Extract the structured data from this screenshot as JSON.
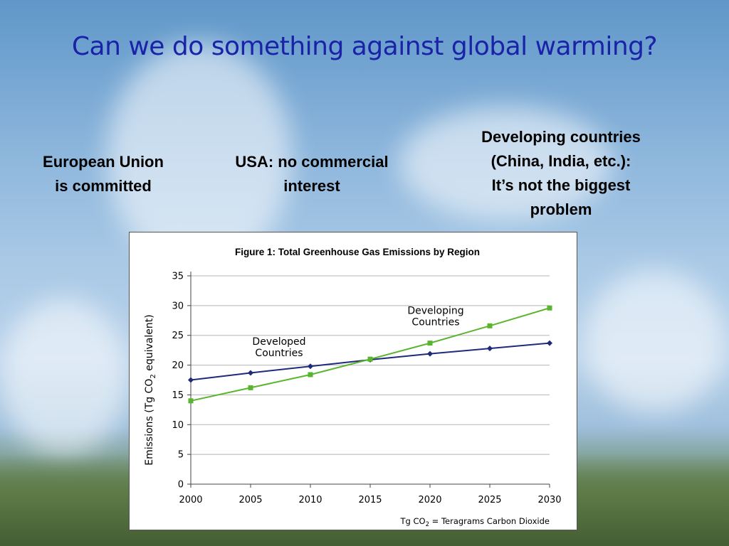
{
  "slide": {
    "title": "Can we do something against global warming?",
    "columns": [
      {
        "text_lines": [
          "European Union",
          "is committed"
        ]
      },
      {
        "text_lines": [
          "USA: no commercial",
          "interest"
        ]
      },
      {
        "text_lines": [
          "Developing countries",
          "(China, India, etc.):",
          "It’s not the biggest",
          "problem"
        ]
      }
    ]
  },
  "colors": {
    "title": "#1a22a8",
    "developed": "#1f2a7a",
    "developing": "#5ab52e",
    "grid": "#b5b5b5"
  },
  "chart_data": {
    "type": "line",
    "title": "Figure 1: Total Greenhouse Gas Emissions by Region",
    "ylabel": "Emissions (Tg CO2 equivalent)",
    "footnote": "Tg CO2 = Teragrams Carbon Dioxide",
    "x": [
      2000,
      2005,
      2010,
      2015,
      2020,
      2025,
      2030
    ],
    "x_tick_labels": [
      "2000",
      "2005",
      "2010",
      "2015",
      "2020",
      "2025",
      "2030"
    ],
    "y_ticks": [
      0,
      5,
      10,
      15,
      20,
      25,
      30,
      35
    ],
    "ylim": [
      0,
      35
    ],
    "grid": "horizontal",
    "series": [
      {
        "name": "Developed Countries",
        "name_lines": [
          "Developed",
          "Countries"
        ],
        "color_key": "developed",
        "values": [
          17.5,
          18.7,
          19.8,
          20.9,
          21.9,
          22.8,
          23.7
        ]
      },
      {
        "name": "Developing Countries",
        "name_lines": [
          "Developing",
          "Countries"
        ],
        "color_key": "developing",
        "values": [
          14.0,
          16.2,
          18.4,
          21.0,
          23.7,
          26.6,
          29.6
        ]
      }
    ]
  }
}
